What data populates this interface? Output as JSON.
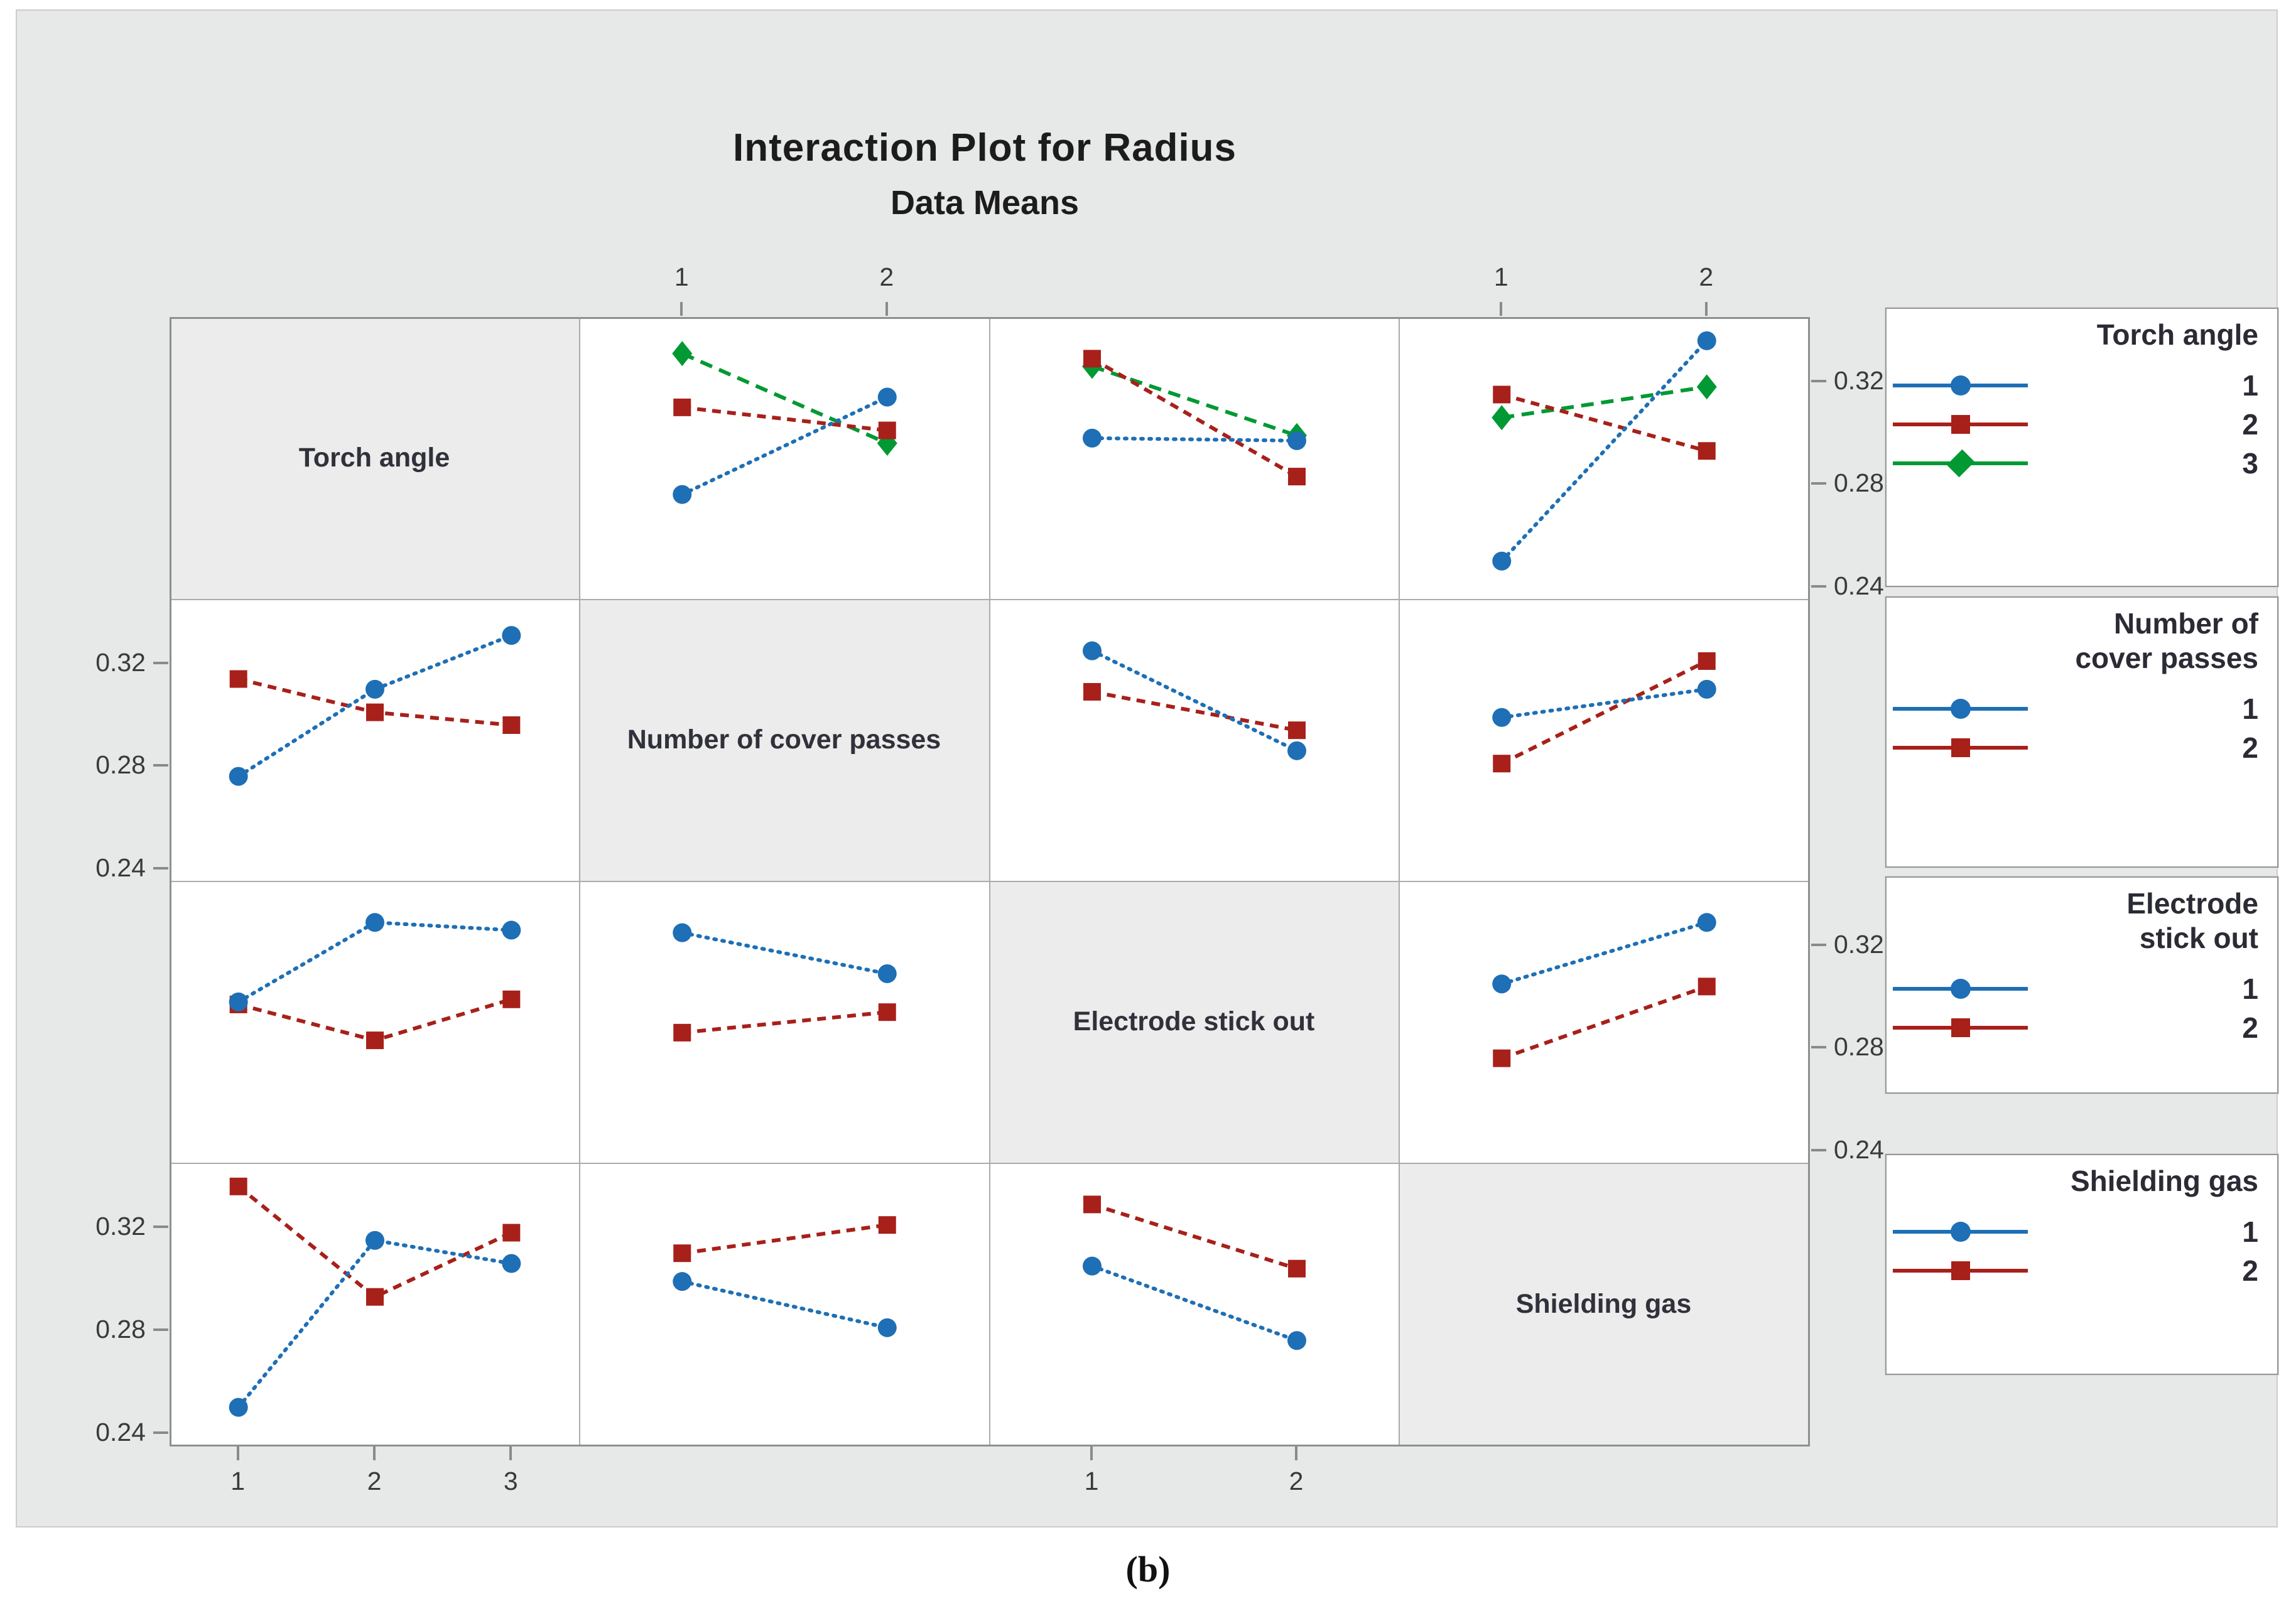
{
  "figure": {
    "title": "Interaction Plot for Radius",
    "subtitle": "Data Means"
  },
  "caption": "(b)",
  "factors": [
    {
      "label": "Torch angle"
    },
    {
      "label": "Number of cover passes"
    },
    {
      "label": "Electrode stick out"
    },
    {
      "label": "Shielding gas"
    }
  ],
  "styles": {
    "1": {
      "color": "#1E6FB5",
      "marker": "circle",
      "dash": "3 10"
    },
    "2": {
      "color": "#A8201A",
      "marker": "square",
      "dash": "14 10"
    },
    "3": {
      "color": "#009933",
      "marker": "diamond",
      "dash": "20 12"
    }
  },
  "ui_colors": {
    "canvas": "#E7E8E8",
    "panel": "#FFFFFF",
    "diagonal_cell": "#ECECEC",
    "grid_border": "#ABABAB",
    "outer_border": "#8F8F8F",
    "tick": "#8A8A8A",
    "tick_text": "#3A3A3A"
  },
  "legends": [
    {
      "title": "Torch angle",
      "entries": [
        {
          "label": "1",
          "style": "1"
        },
        {
          "label": "2",
          "style": "2"
        },
        {
          "label": "3",
          "style": "3"
        }
      ]
    },
    {
      "title": "Number of cover passes",
      "entries": [
        {
          "label": "1",
          "style": "1"
        },
        {
          "label": "2",
          "style": "2"
        }
      ]
    },
    {
      "title": "Electrode stick out",
      "entries": [
        {
          "label": "1",
          "style": "1"
        },
        {
          "label": "2",
          "style": "2"
        }
      ]
    },
    {
      "title": "Shielding gas",
      "entries": [
        {
          "label": "1",
          "style": "1"
        },
        {
          "label": "2",
          "style": "2"
        }
      ]
    }
  ],
  "axes": {
    "y_tick_labels": [
      "0.32",
      "0.28",
      "0.24"
    ],
    "y_tick_values": [
      0.32,
      0.28,
      0.24
    ],
    "left_rows": [
      1,
      3
    ],
    "right_rows": [
      0,
      2
    ],
    "top": [
      {
        "col": 1,
        "labels": [
          "1",
          "2"
        ]
      },
      {
        "col": 3,
        "labels": [
          "1",
          "2"
        ]
      }
    ],
    "bottom": [
      {
        "col": 0,
        "labels": [
          "1",
          "2",
          "3"
        ]
      },
      {
        "col": 2,
        "labels": [
          "1",
          "2"
        ]
      }
    ]
  },
  "chart_data": {
    "type": "line",
    "title": "Interaction Plot for Radius",
    "subtitle": "Data Means",
    "ylim": [
      0.235,
      0.345
    ],
    "y_ticks": [
      0.24,
      0.28,
      0.32
    ],
    "grid": false,
    "legend_position": "right",
    "panels": [
      {
        "row": 0,
        "col": 1,
        "x_factor": "Number of cover passes",
        "trace_factor": "Torch angle",
        "x": [
          "1",
          "2"
        ],
        "series": [
          {
            "name": "1",
            "style": "1",
            "values": [
              0.276,
              0.314
            ]
          },
          {
            "name": "2",
            "style": "2",
            "values": [
              0.31,
              0.301
            ]
          },
          {
            "name": "3",
            "style": "3",
            "values": [
              0.331,
              0.296
            ]
          }
        ]
      },
      {
        "row": 0,
        "col": 2,
        "x_factor": "Electrode stick out",
        "trace_factor": "Torch angle",
        "x": [
          "1",
          "2"
        ],
        "series": [
          {
            "name": "1",
            "style": "1",
            "values": [
              0.298,
              0.297
            ]
          },
          {
            "name": "2",
            "style": "2",
            "values": [
              0.329,
              0.283
            ]
          },
          {
            "name": "3",
            "style": "3",
            "values": [
              0.326,
              0.299
            ]
          }
        ]
      },
      {
        "row": 0,
        "col": 3,
        "x_factor": "Shielding gas",
        "trace_factor": "Torch angle",
        "x": [
          "1",
          "2"
        ],
        "series": [
          {
            "name": "1",
            "style": "1",
            "values": [
              0.25,
              0.336
            ]
          },
          {
            "name": "2",
            "style": "2",
            "values": [
              0.315,
              0.293
            ]
          },
          {
            "name": "3",
            "style": "3",
            "values": [
              0.306,
              0.318
            ]
          }
        ]
      },
      {
        "row": 1,
        "col": 0,
        "x_factor": "Torch angle",
        "trace_factor": "Number of cover passes",
        "x": [
          "1",
          "2",
          "3"
        ],
        "series": [
          {
            "name": "1",
            "style": "1",
            "values": [
              0.276,
              0.31,
              0.331
            ]
          },
          {
            "name": "2",
            "style": "2",
            "values": [
              0.314,
              0.301,
              0.296
            ]
          }
        ]
      },
      {
        "row": 1,
        "col": 2,
        "x_factor": "Electrode stick out",
        "trace_factor": "Number of cover passes",
        "x": [
          "1",
          "2"
        ],
        "series": [
          {
            "name": "1",
            "style": "1",
            "values": [
              0.325,
              0.286
            ]
          },
          {
            "name": "2",
            "style": "2",
            "values": [
              0.309,
              0.294
            ]
          }
        ]
      },
      {
        "row": 1,
        "col": 3,
        "x_factor": "Shielding gas",
        "trace_factor": "Number of cover passes",
        "x": [
          "1",
          "2"
        ],
        "series": [
          {
            "name": "1",
            "style": "1",
            "values": [
              0.299,
              0.31
            ]
          },
          {
            "name": "2",
            "style": "2",
            "values": [
              0.281,
              0.321
            ]
          }
        ]
      },
      {
        "row": 2,
        "col": 0,
        "x_factor": "Torch angle",
        "trace_factor": "Electrode stick out",
        "x": [
          "1",
          "2",
          "3"
        ],
        "series": [
          {
            "name": "1",
            "style": "1",
            "values": [
              0.298,
              0.329,
              0.326
            ]
          },
          {
            "name": "2",
            "style": "2",
            "values": [
              0.297,
              0.283,
              0.299
            ]
          }
        ]
      },
      {
        "row": 2,
        "col": 1,
        "x_factor": "Number of cover passes",
        "trace_factor": "Electrode stick out",
        "x": [
          "1",
          "2"
        ],
        "series": [
          {
            "name": "1",
            "style": "1",
            "values": [
              0.325,
              0.309
            ]
          },
          {
            "name": "2",
            "style": "2",
            "values": [
              0.286,
              0.294
            ]
          }
        ]
      },
      {
        "row": 2,
        "col": 3,
        "x_factor": "Shielding gas",
        "trace_factor": "Electrode stick out",
        "x": [
          "1",
          "2"
        ],
        "series": [
          {
            "name": "1",
            "style": "1",
            "values": [
              0.305,
              0.329
            ]
          },
          {
            "name": "2",
            "style": "2",
            "values": [
              0.276,
              0.304
            ]
          }
        ]
      },
      {
        "row": 3,
        "col": 0,
        "x_factor": "Torch angle",
        "trace_factor": "Shielding gas",
        "x": [
          "1",
          "2",
          "3"
        ],
        "series": [
          {
            "name": "1",
            "style": "1",
            "values": [
              0.25,
              0.315,
              0.306
            ]
          },
          {
            "name": "2",
            "style": "2",
            "values": [
              0.336,
              0.293,
              0.318
            ]
          }
        ]
      },
      {
        "row": 3,
        "col": 1,
        "x_factor": "Number of cover passes",
        "trace_factor": "Shielding gas",
        "x": [
          "1",
          "2"
        ],
        "series": [
          {
            "name": "1",
            "style": "1",
            "values": [
              0.299,
              0.281
            ]
          },
          {
            "name": "2",
            "style": "2",
            "values": [
              0.31,
              0.321
            ]
          }
        ]
      },
      {
        "row": 3,
        "col": 2,
        "x_factor": "Electrode stick out",
        "trace_factor": "Shielding gas",
        "x": [
          "1",
          "2"
        ],
        "series": [
          {
            "name": "1",
            "style": "1",
            "values": [
              0.305,
              0.276
            ]
          },
          {
            "name": "2",
            "style": "2",
            "values": [
              0.329,
              0.304
            ]
          }
        ]
      }
    ]
  }
}
